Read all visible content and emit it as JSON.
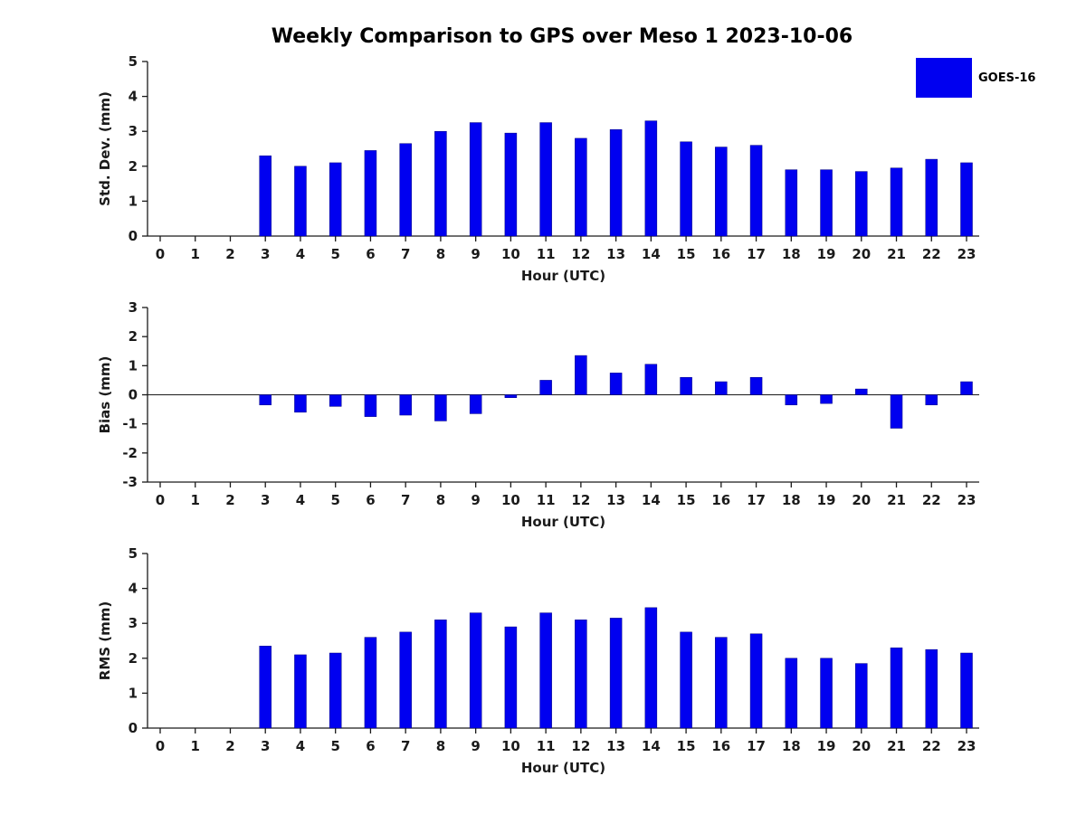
{
  "title": "Weekly Comparison to GPS over Meso 1 2023-10-06",
  "legend": {
    "label": "GOES-16",
    "color": "#0000f0"
  },
  "chart_data": [
    {
      "type": "bar",
      "panel": "std-dev",
      "title": "",
      "xlabel": "Hour (UTC)",
      "ylabel": "Std. Dev. (mm)",
      "ylim": [
        0,
        5
      ],
      "yticks": [
        0,
        1,
        2,
        3,
        4,
        5
      ],
      "categories": [
        0,
        1,
        2,
        3,
        4,
        5,
        6,
        7,
        8,
        9,
        10,
        11,
        12,
        13,
        14,
        15,
        16,
        17,
        18,
        19,
        20,
        21,
        22,
        23
      ],
      "series": [
        {
          "name": "GOES-16",
          "values": [
            null,
            null,
            null,
            2.3,
            2.0,
            2.1,
            2.45,
            2.65,
            3.0,
            3.25,
            2.95,
            3.25,
            2.8,
            3.05,
            3.3,
            2.7,
            2.55,
            2.6,
            1.9,
            1.9,
            1.85,
            1.95,
            2.2,
            2.1
          ]
        }
      ]
    },
    {
      "type": "bar",
      "panel": "bias",
      "title": "",
      "xlabel": "Hour (UTC)",
      "ylabel": "Bias (mm)",
      "ylim": [
        -3,
        3
      ],
      "yticks": [
        -3,
        -2,
        -1,
        0,
        1,
        2,
        3
      ],
      "categories": [
        0,
        1,
        2,
        3,
        4,
        5,
        6,
        7,
        8,
        9,
        10,
        11,
        12,
        13,
        14,
        15,
        16,
        17,
        18,
        19,
        20,
        21,
        22,
        23
      ],
      "series": [
        {
          "name": "GOES-16",
          "values": [
            null,
            null,
            null,
            -0.35,
            -0.6,
            -0.4,
            -0.75,
            -0.7,
            -0.9,
            -0.65,
            -0.1,
            0.5,
            1.35,
            0.75,
            1.05,
            0.6,
            0.45,
            0.6,
            -0.35,
            -0.3,
            0.2,
            -1.15,
            -0.35,
            0.45
          ]
        }
      ]
    },
    {
      "type": "bar",
      "panel": "rms",
      "title": "",
      "xlabel": "Hour (UTC)",
      "ylabel": "RMS (mm)",
      "ylim": [
        0,
        5
      ],
      "yticks": [
        0,
        1,
        2,
        3,
        4,
        5
      ],
      "categories": [
        0,
        1,
        2,
        3,
        4,
        5,
        6,
        7,
        8,
        9,
        10,
        11,
        12,
        13,
        14,
        15,
        16,
        17,
        18,
        19,
        20,
        21,
        22,
        23
      ],
      "series": [
        {
          "name": "GOES-16",
          "values": [
            null,
            null,
            null,
            2.35,
            2.1,
            2.15,
            2.6,
            2.75,
            3.1,
            3.3,
            2.9,
            3.3,
            3.1,
            3.15,
            3.45,
            2.75,
            2.6,
            2.7,
            2.0,
            2.0,
            1.85,
            2.3,
            2.25,
            2.15
          ]
        }
      ]
    }
  ]
}
